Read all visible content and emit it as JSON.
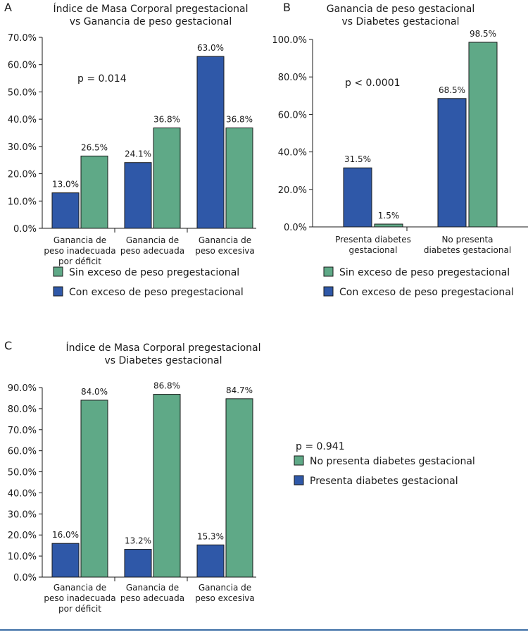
{
  "colors": {
    "green": "#5fa987",
    "blue": "#2f58a8"
  },
  "chart_data": [
    {
      "type": "bar",
      "panel": "A",
      "title": [
        "Índice de Masa Corporal pregestacional",
        "vs Ganancia de peso gestacional"
      ],
      "categories": [
        [
          "Ganancia de",
          "peso inadecuada",
          "por déficit"
        ],
        [
          "Ganancia de",
          "peso adecuada"
        ],
        [
          "Ganancia de",
          "peso excesiva"
        ]
      ],
      "series": [
        {
          "name": "Con exceso de peso pregestacional",
          "color": "blue",
          "values": [
            13.0,
            24.1,
            63.0
          ],
          "labels": [
            "13.0%",
            "24.1%",
            "63.0%"
          ]
        },
        {
          "name": "Sin exceso de peso pregestacional",
          "color": "green",
          "values": [
            26.5,
            36.8,
            36.8
          ],
          "labels": [
            "26.5%",
            "36.8%",
            "36.8%"
          ]
        }
      ],
      "yticks": [
        "0.0%",
        "10.0%",
        "20.0%",
        "30.0%",
        "40.0%",
        "50.0%",
        "60.0%",
        "70.0%"
      ],
      "ylim": [
        0,
        70
      ],
      "annotation": "p = 0.014",
      "legend": [
        {
          "label": "Sin exceso de peso pregestacional",
          "color": "green"
        },
        {
          "label": "Con exceso de peso pregestacional",
          "color": "blue"
        }
      ]
    },
    {
      "type": "bar",
      "panel": "B",
      "title": [
        "Ganancia de peso gestacional",
        "vs Diabetes gestacional"
      ],
      "categories": [
        [
          "Presenta diabetes",
          "gestacional"
        ],
        [
          "No presenta",
          "diabetes gestacional"
        ]
      ],
      "series": [
        {
          "name": "Con exceso de peso pregestacional",
          "color": "blue",
          "values": [
            31.5,
            68.5
          ],
          "labels": [
            "31.5%",
            "68.5%"
          ]
        },
        {
          "name": "Sin exceso de peso pregestacional",
          "color": "green",
          "values": [
            1.5,
            98.5
          ],
          "labels": [
            "1.5%",
            "98.5%"
          ]
        }
      ],
      "yticks": [
        "0.0%",
        "20.0%",
        "40.0%",
        "60.0%",
        "80.0%",
        "100.0%"
      ],
      "ylim": [
        0,
        100
      ],
      "annotation": "p < 0.0001",
      "legend": [
        {
          "label": "Sin exceso de peso pregestacional",
          "color": "green"
        },
        {
          "label": "Con exceso de peso pregestacional",
          "color": "blue"
        }
      ]
    },
    {
      "type": "bar",
      "panel": "C",
      "title": [
        "Índice de Masa Corporal pregestacional",
        "vs Diabetes gestacional"
      ],
      "categories": [
        [
          "Ganancia de",
          "peso inadecuada",
          "por déficit"
        ],
        [
          "Ganancia de",
          "peso adecuada"
        ],
        [
          "Ganancia de",
          "peso excesiva"
        ]
      ],
      "series": [
        {
          "name": "Presenta diabetes gestacional",
          "color": "blue",
          "values": [
            16.0,
            13.2,
            15.3
          ],
          "labels": [
            "16.0%",
            "13.2%",
            "15.3%"
          ]
        },
        {
          "name": "No presenta diabetes gestacional",
          "color": "green",
          "values": [
            84.0,
            86.8,
            84.7
          ],
          "labels": [
            "84.0%",
            "86.8%",
            "84.7%"
          ]
        }
      ],
      "yticks": [
        "0.0%",
        "10.0%",
        "20.0%",
        "30.0%",
        "40.0%",
        "50.0%",
        "60.0%",
        "70.0%",
        "80.0%",
        "90.0%"
      ],
      "ylim": [
        0,
        90
      ],
      "annotation": "p = 0.941",
      "legend": [
        {
          "label": "No presenta diabetes gestacional",
          "color": "green"
        },
        {
          "label": "Presenta diabetes gestacional",
          "color": "blue"
        }
      ]
    }
  ]
}
